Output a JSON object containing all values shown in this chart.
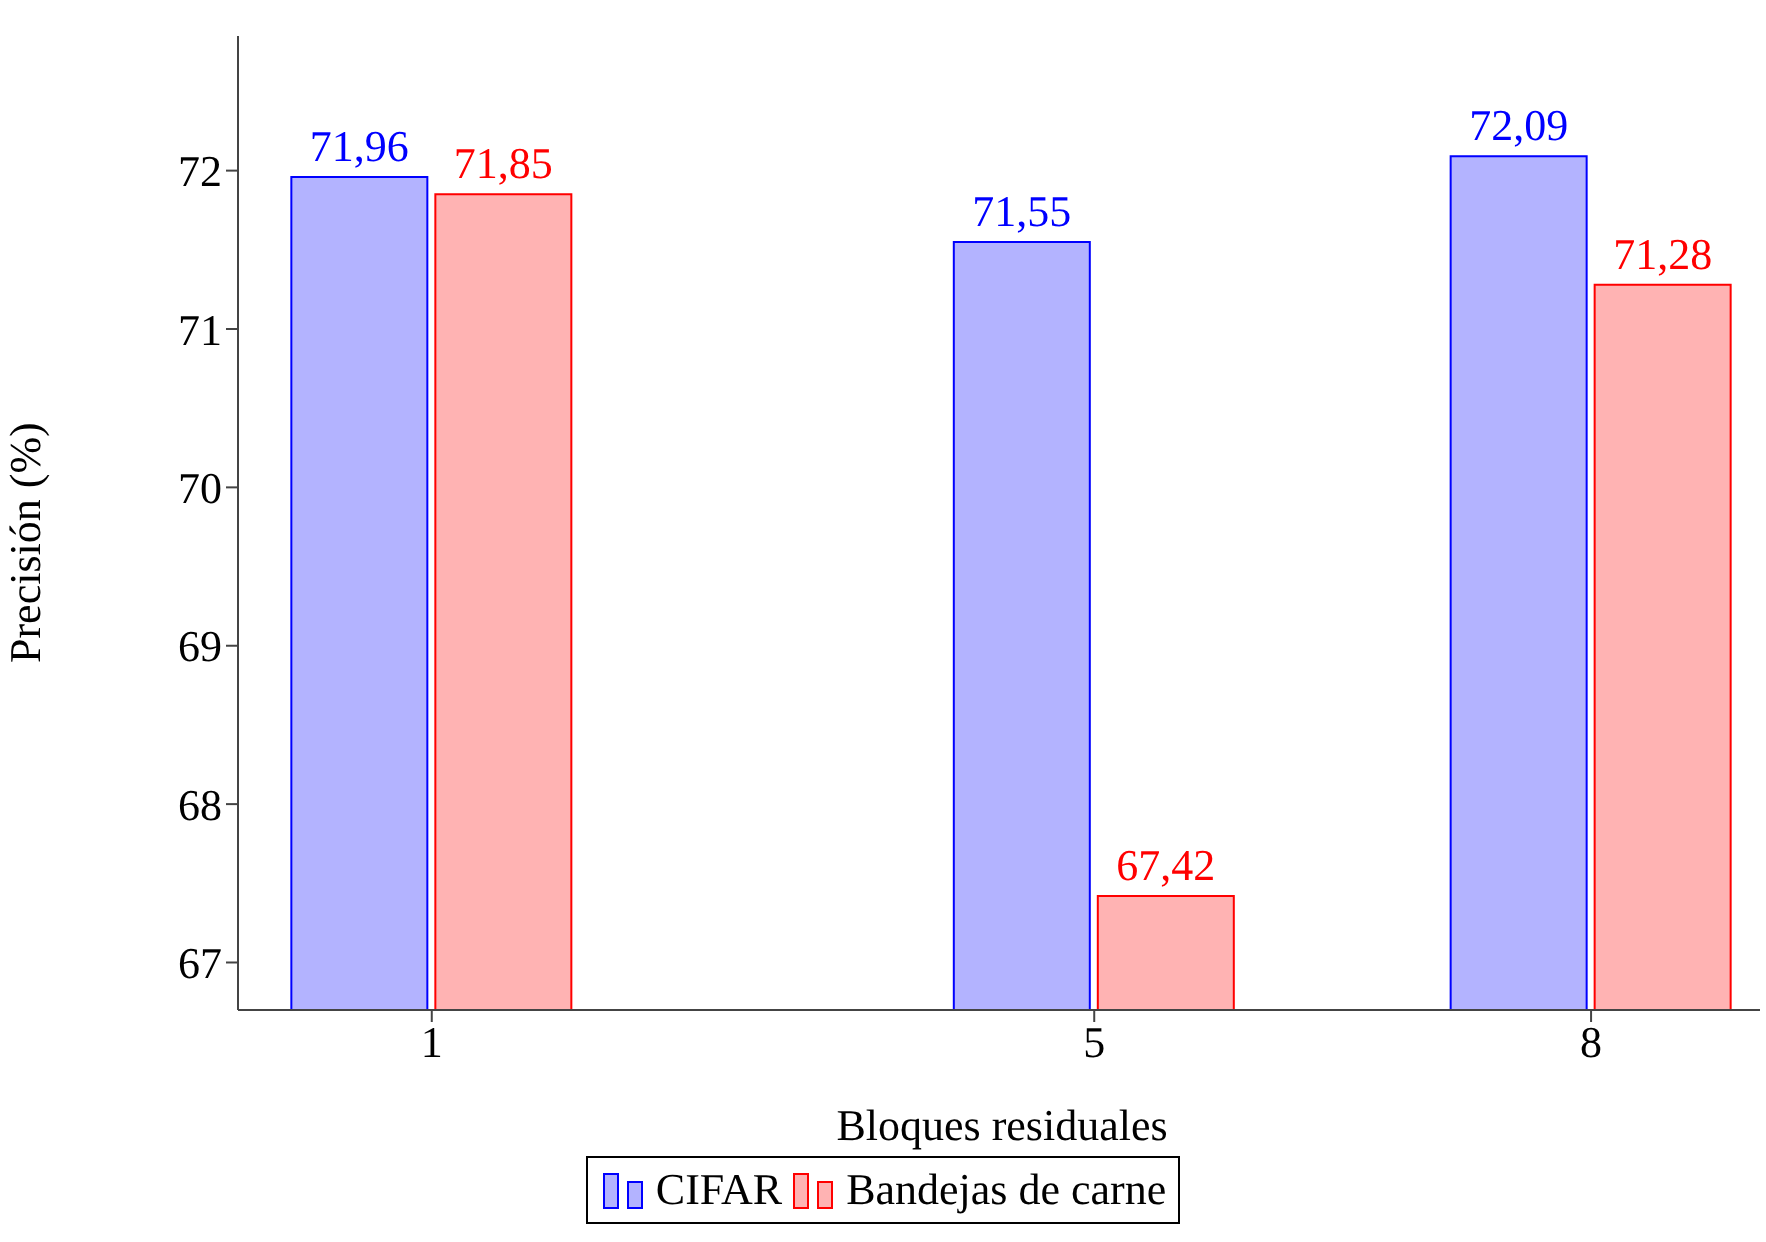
{
  "chart_data": {
    "type": "bar",
    "xlabel": "Bloques residuales",
    "ylabel": "Precisión (%)",
    "x": [
      1,
      5,
      8
    ],
    "xlim": [
      -0.17,
      9.02
    ],
    "xticks": [
      1,
      5,
      8
    ],
    "ylim": [
      66.7,
      72.85
    ],
    "yticks": [
      67,
      68,
      69,
      70,
      71,
      72
    ],
    "series": [
      {
        "name": "CIFAR",
        "color": "#b3b3ff",
        "values": [
          71.96,
          71.55,
          72.09
        ],
        "value_labels": [
          "71,96",
          "71,55",
          "72,09"
        ]
      },
      {
        "name": "Bandejas de carne",
        "color": "#ffb3b3",
        "values": [
          71.85,
          67.42,
          71.28
        ],
        "value_labels": [
          "71,85",
          "67,42",
          "71,28"
        ]
      }
    ],
    "legend": "bottom"
  }
}
